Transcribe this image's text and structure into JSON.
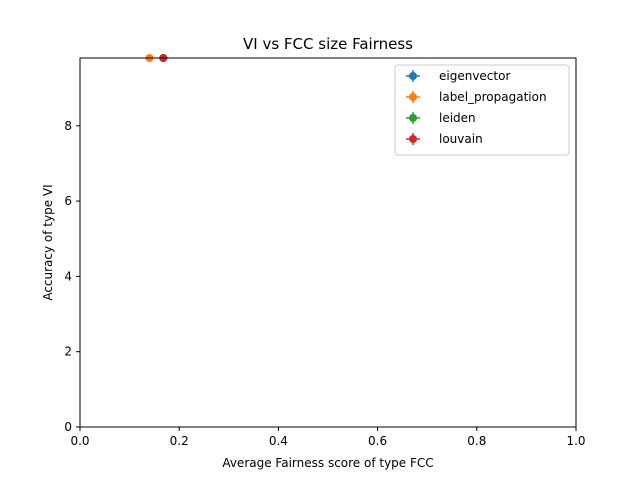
{
  "chart_data": {
    "type": "scatter",
    "title": "VI vs FCC size Fairness",
    "xlabel": "Average Fairness score of type FCC",
    "ylabel": "Accuracy of type VI",
    "xlim": [
      0.0,
      1.0
    ],
    "ylim": [
      0,
      9.8
    ],
    "xticks": [
      0.0,
      0.2,
      0.4,
      0.6,
      0.8,
      1.0
    ],
    "xtick_labels": [
      "0.0",
      "0.2",
      "0.4",
      "0.6",
      "0.8",
      "1.0"
    ],
    "yticks": [
      0,
      2,
      4,
      6,
      8
    ],
    "ytick_labels": [
      "0",
      "2",
      "4",
      "6",
      "8"
    ],
    "grid": false,
    "legend_position": "top-right",
    "error_bars": true,
    "series": [
      {
        "name": "eigenvector",
        "color": "#1f77b4",
        "points": [
          {
            "x": 0.168,
            "y": 9.8
          }
        ]
      },
      {
        "name": "label_propagation",
        "color": "#ff7f0e",
        "points": [
          {
            "x": 0.14,
            "y": 9.8
          }
        ]
      },
      {
        "name": "leiden",
        "color": "#2ca02c",
        "points": [
          {
            "x": 0.168,
            "y": 9.8
          }
        ]
      },
      {
        "name": "louvain",
        "color": "#d62728",
        "points": [
          {
            "x": 0.168,
            "y": 9.8
          }
        ]
      }
    ]
  }
}
